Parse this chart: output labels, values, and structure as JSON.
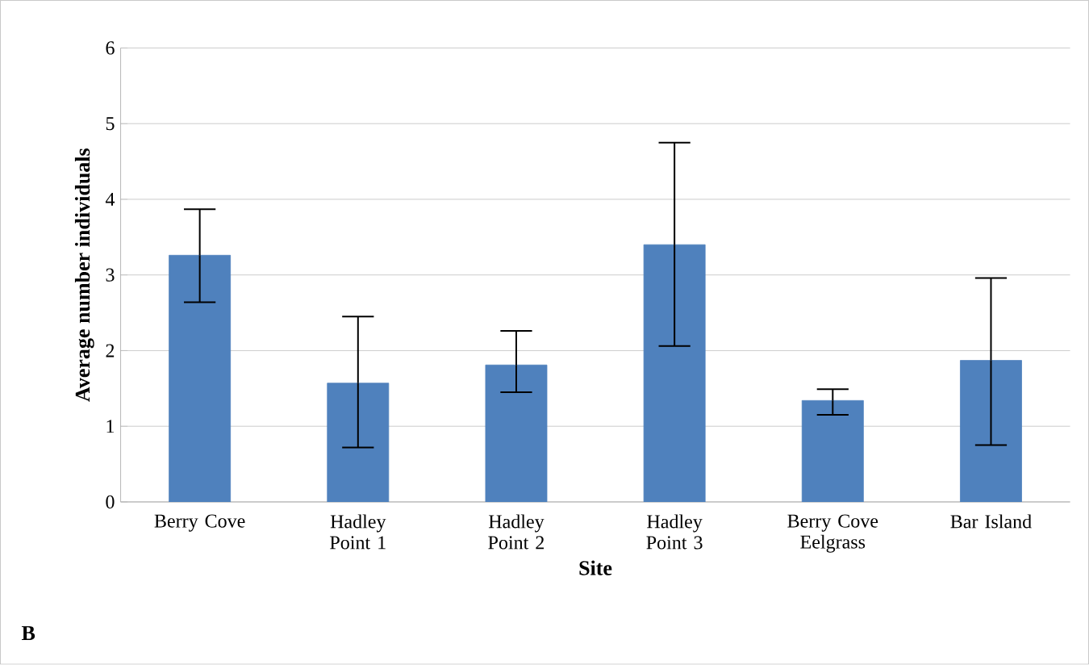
{
  "chart_data": {
    "type": "bar",
    "xlabel": "Site",
    "ylabel": "Average number individuals",
    "categories": [
      "Berry Cove",
      "Hadley Point 1",
      "Hadley Point 2",
      "Hadley Point 3",
      "Berry Cove Eelgrass",
      "Bar Island"
    ],
    "values": [
      3.26,
      1.57,
      1.81,
      3.4,
      1.34,
      1.87
    ],
    "errors": [
      [
        2.64,
        3.87
      ],
      [
        0.72,
        2.45
      ],
      [
        1.45,
        2.26
      ],
      [
        2.06,
        4.75
      ],
      [
        1.15,
        1.49
      ],
      [
        0.75,
        2.96
      ]
    ],
    "color": "#4f81bd",
    "ylim": [
      0,
      6
    ],
    "yticks": [
      0,
      1,
      2,
      3,
      4,
      5,
      6
    ],
    "grid": "y",
    "annotations": [
      "B"
    ]
  }
}
